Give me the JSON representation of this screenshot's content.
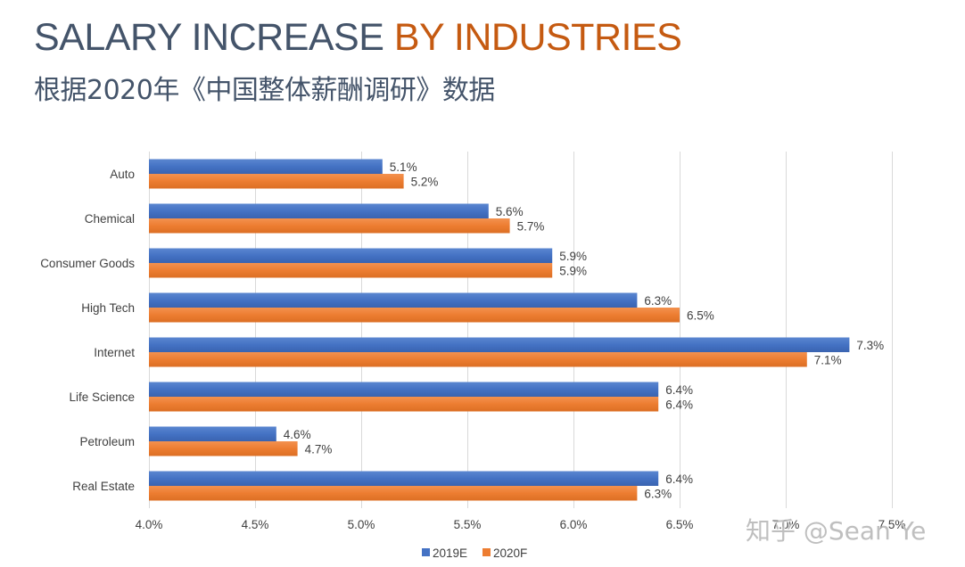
{
  "header": {
    "title_main": "SALARY INCREASE ",
    "title_accent": "BY INDUSTRIES",
    "subtitle": "根据2020年《中国整体薪酬调研》数据"
  },
  "watermark": "知乎 @Sean Ye",
  "colors": {
    "series_2019E": "#4472c4",
    "series_2020F": "#ed7d31",
    "title": "#44546a",
    "title_accent": "#c55a11",
    "gridline": "#d9d9d9"
  },
  "chart_data": {
    "type": "bar",
    "orientation": "horizontal",
    "title": "SALARY INCREASE BY INDUSTRIES",
    "subtitle": "根据2020年《中国整体薪酬调研》数据",
    "categories": [
      "Auto",
      "Chemical",
      "Consumer Goods",
      "High Tech",
      "Internet",
      "Life Science",
      "Petroleum",
      "Real Estate"
    ],
    "series": [
      {
        "name": "2019E",
        "values": [
          5.1,
          5.6,
          5.9,
          6.3,
          7.3,
          6.4,
          4.6,
          6.4
        ],
        "labels": [
          "5.1%",
          "5.6%",
          "5.9%",
          "6.3%",
          "7.3%",
          "6.4%",
          "4.6%",
          "6.4%"
        ]
      },
      {
        "name": "2020F",
        "values": [
          5.2,
          5.7,
          5.9,
          6.5,
          7.1,
          6.4,
          4.7,
          6.3
        ],
        "labels": [
          "5.2%",
          "5.7%",
          "5.9%",
          "6.5%",
          "7.1%",
          "6.4%",
          "4.7%",
          "6.3%"
        ]
      }
    ],
    "xlabel": "",
    "ylabel": "",
    "xlim": [
      4.0,
      7.5
    ],
    "xticks": [
      4.0,
      4.5,
      5.0,
      5.5,
      6.0,
      6.5,
      7.0,
      7.5
    ],
    "xtick_labels": [
      "4.0%",
      "4.5%",
      "5.0%",
      "5.5%",
      "6.0%",
      "6.5%",
      "7.0%",
      "7.5%"
    ],
    "grid": true,
    "legend": {
      "position": "bottom",
      "entries": [
        "2019E",
        "2020F"
      ]
    }
  }
}
